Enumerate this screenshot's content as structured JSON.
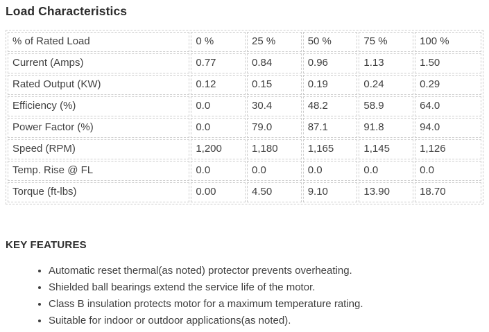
{
  "page_title": "Load Characteristics",
  "load_table": {
    "rows": [
      {
        "label": "% of Rated Load",
        "values": [
          "0 %",
          "25 %",
          "50 %",
          "75 %",
          "100 %"
        ]
      },
      {
        "label": "Current (Amps)",
        "values": [
          "0.77",
          "0.84",
          "0.96",
          "1.13",
          "1.50"
        ]
      },
      {
        "label": "Rated Output (KW)",
        "values": [
          "0.12",
          "0.15",
          "0.19",
          "0.24",
          "0.29"
        ]
      },
      {
        "label": "Efficiency (%)",
        "values": [
          "0.0",
          "30.4",
          "48.2",
          "58.9",
          "64.0"
        ]
      },
      {
        "label": "Power Factor (%)",
        "values": [
          "0.0",
          "79.0",
          "87.1",
          "91.8",
          "94.0"
        ]
      },
      {
        "label": "Speed (RPM)",
        "values": [
          "1,200",
          "1,180",
          "1,165",
          "1,145",
          "1,126"
        ]
      },
      {
        "label": "Temp. Rise @ FL",
        "values": [
          "0.0",
          "0.0",
          "0.0",
          "0.0",
          "0.0"
        ]
      },
      {
        "label": "Torque (ft-lbs)",
        "values": [
          "0.00",
          "4.50",
          "9.10",
          "13.90",
          "18.70"
        ]
      }
    ]
  },
  "features": {
    "heading": "KEY FEATURES",
    "items": [
      "Automatic reset thermal(as noted) protector prevents overheating.",
      "Shielded ball bearings extend the service life of the motor.",
      "Class B insulation protects motor for a maximum temperature rating.",
      "Suitable for indoor or outdoor applications(as noted)."
    ]
  },
  "colors": {
    "text": "#404040",
    "heading_text": "#2d2d2d",
    "table_border": "#cccccc",
    "background": "#ffffff"
  }
}
